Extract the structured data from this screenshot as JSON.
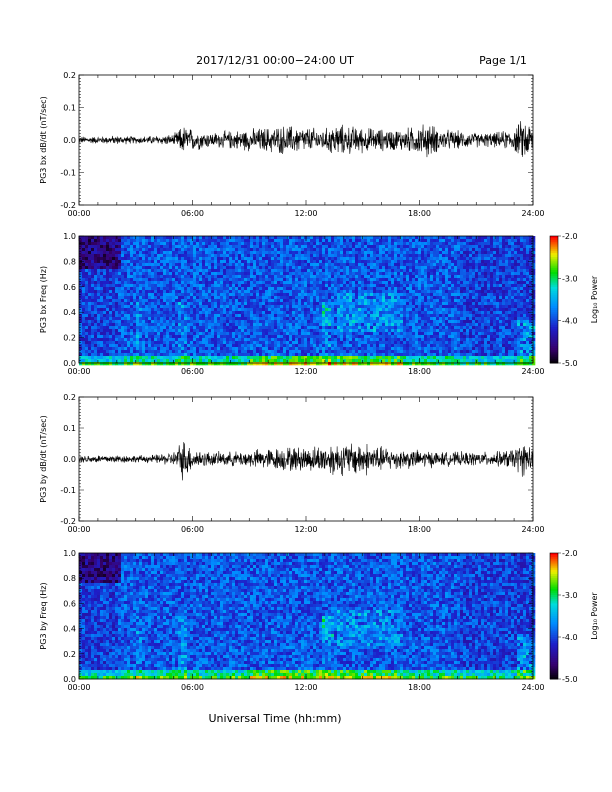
{
  "header": {
    "date_range": "2017/12/31  00:00−24:00 UT",
    "page": "Page 1/1"
  },
  "x_axis": {
    "tick_labels": [
      "00:00",
      "06:00",
      "12:00",
      "18:00",
      "24:00"
    ],
    "title": "Universal Time (hh:mm)"
  },
  "colorbar": {
    "title": "Log₁₀ Power",
    "tick_labels": [
      "-2.0",
      "-3.0",
      "-4.0",
      "-5.0"
    ],
    "range": [
      -5.0,
      -2.0
    ]
  },
  "colors": {
    "trace": "#000000",
    "spectrogram_low": "#1a1a8c",
    "spectrogram_high": "#ff0000"
  },
  "chart_data": [
    {
      "type": "line",
      "ylabel": "PG3 bx dB/dt (nT/sec)",
      "x_range": [
        0,
        24
      ],
      "ylim": [
        -0.2,
        0.2
      ],
      "y_ticks": [
        "0.2",
        "0.1",
        "0.0",
        "-0.1",
        "-0.2"
      ],
      "series": [
        {
          "x": [
            0,
            1,
            2,
            3,
            4,
            5,
            5.5,
            6,
            7,
            8,
            9,
            10,
            11,
            12,
            13,
            13.5,
            14,
            15,
            16,
            17,
            18,
            18.5,
            19,
            20,
            21,
            22,
            23,
            23.5,
            24
          ],
          "amplitude": [
            0.01,
            0.01,
            0.012,
            0.01,
            0.012,
            0.015,
            0.04,
            0.03,
            0.02,
            0.025,
            0.03,
            0.035,
            0.04,
            0.035,
            0.03,
            0.045,
            0.04,
            0.035,
            0.03,
            0.03,
            0.04,
            0.05,
            0.03,
            0.025,
            0.02,
            0.02,
            0.03,
            0.06,
            0.04
          ]
        }
      ]
    },
    {
      "type": "heatmap",
      "ylabel": "PG3 bx Freq (Hz)",
      "x_range": [
        0,
        24
      ],
      "ylim": [
        0.0,
        1.0
      ],
      "y_ticks": [
        "1.0",
        "0.8",
        "0.6",
        "0.4",
        "0.2",
        "0.0"
      ]
    },
    {
      "type": "line",
      "ylabel": "PG3 by dB/dt (nT/sec)",
      "x_range": [
        0,
        24
      ],
      "ylim": [
        -0.2,
        0.2
      ],
      "y_ticks": [
        "0.2",
        "0.1",
        "0.0",
        "-0.1",
        "-0.2"
      ],
      "series": [
        {
          "x": [
            0,
            1,
            2,
            3,
            4,
            5,
            5.5,
            6,
            7,
            8,
            9,
            10,
            11,
            12,
            13,
            13.5,
            14,
            15,
            16,
            17,
            18,
            18.5,
            19,
            20,
            21,
            22,
            23,
            23.5,
            24
          ],
          "amplitude": [
            0.01,
            0.012,
            0.012,
            0.01,
            0.012,
            0.02,
            0.06,
            0.03,
            0.02,
            0.02,
            0.025,
            0.03,
            0.035,
            0.035,
            0.04,
            0.05,
            0.045,
            0.05,
            0.035,
            0.03,
            0.025,
            0.025,
            0.02,
            0.02,
            0.02,
            0.02,
            0.03,
            0.05,
            0.03
          ]
        }
      ]
    },
    {
      "type": "heatmap",
      "ylabel": "PG3 by Freq (Hz)",
      "x_range": [
        0,
        24
      ],
      "ylim": [
        0.0,
        1.0
      ],
      "y_ticks": [
        "1.0",
        "0.8",
        "0.6",
        "0.4",
        "0.2",
        "0.0"
      ]
    }
  ]
}
